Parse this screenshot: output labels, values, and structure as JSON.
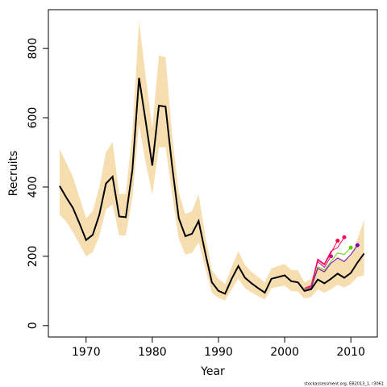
{
  "chart_data": {
    "type": "line",
    "x_label": "Year",
    "y_label": "Recruits",
    "footnote": "stockassessment.org, EB2013_1, r3061",
    "xlim": [
      1964.3,
      2014
    ],
    "ylim": [
      -33,
      912
    ],
    "xticks": [
      1970,
      1980,
      1990,
      2000,
      2010
    ],
    "yticks": [
      0,
      200,
      400,
      600,
      800
    ],
    "x": [
      1966,
      1967,
      1968,
      1969,
      1970,
      1971,
      1972,
      1973,
      1974,
      1975,
      1976,
      1977,
      1978,
      1979,
      1980,
      1981,
      1982,
      1983,
      1984,
      1985,
      1986,
      1987,
      1988,
      1989,
      1990,
      1991,
      1992,
      1993,
      1994,
      1995,
      1996,
      1997,
      1998,
      1999,
      2000,
      2001,
      2002,
      2003,
      2004,
      2005,
      2006,
      2007,
      2008,
      2009,
      2010,
      2011,
      2012
    ],
    "band": {
      "color": "#f7deb0",
      "upper": [
        510,
        470,
        430,
        370,
        310,
        330,
        400,
        500,
        530,
        380,
        380,
        560,
        880,
        720,
        570,
        780,
        775,
        550,
        385,
        322,
        330,
        380,
        260,
        160,
        135,
        120,
        170,
        215,
        175,
        155,
        140,
        125,
        165,
        172,
        178,
        160,
        160,
        125,
        135,
        170,
        160,
        175,
        200,
        185,
        200,
        250,
        305
      ],
      "lower": [
        320,
        300,
        270,
        235,
        200,
        212,
        258,
        335,
        350,
        260,
        260,
        370,
        580,
        470,
        378,
        515,
        515,
        380,
        250,
        205,
        210,
        240,
        165,
        95,
        80,
        72,
        105,
        135,
        108,
        95,
        85,
        75,
        108,
        112,
        115,
        100,
        98,
        78,
        82,
        105,
        95,
        105,
        118,
        110,
        120,
        140,
        145
      ]
    },
    "series": [
      {
        "color": "#000000",
        "width": 2,
        "values": [
          403,
          370,
          340,
          295,
          247,
          262,
          320,
          410,
          430,
          315,
          313,
          450,
          715,
          590,
          462,
          635,
          632,
          460,
          310,
          258,
          265,
          302,
          210,
          125,
          100,
          92,
          135,
          172,
          138,
          122,
          108,
          95,
          135,
          140,
          145,
          128,
          125,
          100,
          105,
          133,
          122,
          135,
          150,
          138,
          152,
          182,
          208
        ]
      },
      {
        "color": "#d0008f",
        "width": 1,
        "x": [
          2003,
          2004,
          2005,
          2006,
          2007
        ],
        "values": [
          105,
          112,
          185,
          168,
          200
        ]
      },
      {
        "color": "#ff0040",
        "width": 1,
        "x": [
          2003,
          2004,
          2005,
          2006,
          2007,
          2008
        ],
        "values": [
          108,
          115,
          190,
          175,
          210,
          245
        ]
      },
      {
        "color": "#ff0066",
        "width": 1,
        "x": [
          2003,
          2004,
          2005,
          2006,
          2007,
          2008,
          2009
        ],
        "values": [
          108,
          115,
          192,
          178,
          215,
          225,
          255
        ]
      },
      {
        "color": "#66cc00",
        "width": 1,
        "x": [
          2003,
          2004,
          2005,
          2006,
          2007,
          2008,
          2009,
          2010
        ],
        "values": [
          105,
          110,
          170,
          160,
          185,
          210,
          205,
          225
        ]
      },
      {
        "color": "#7b00b4",
        "width": 1,
        "x": [
          2003,
          2004,
          2005,
          2006,
          2007,
          2008,
          2009,
          2010,
          2011
        ],
        "values": [
          102,
          108,
          165,
          155,
          180,
          195,
          185,
          205,
          232
        ]
      }
    ]
  }
}
